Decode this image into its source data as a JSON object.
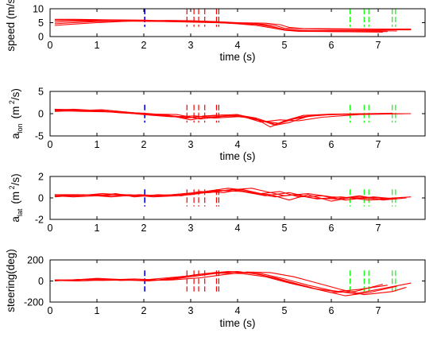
{
  "colors": {
    "traces": "#ff0000",
    "blue_marker": "#0000ff",
    "red_marker": "#ff0000",
    "green_marker": "#00ff00",
    "axes": "#000000"
  },
  "chart_data": [
    {
      "type": "line",
      "id": "speed",
      "ylabel": "speed (m/s)",
      "xlabel": "time (s)",
      "xlim": [
        0,
        8
      ],
      "ylim": [
        0,
        10
      ],
      "xticks": [
        0,
        1,
        2,
        3,
        4,
        5,
        6,
        7
      ],
      "yticks": [
        0,
        5,
        10
      ],
      "markers": {
        "blue": [
          2.02
        ],
        "red": [
          2.92,
          3.07,
          3.17,
          3.3,
          3.55,
          3.6
        ],
        "green": [
          6.4,
          6.7,
          6.8,
          7.3,
          7.37
        ],
        "y_range": [
          3.5,
          10
        ]
      },
      "series": [
        {
          "x": [
            0.1,
            0.5,
            1,
            1.5,
            2,
            2.5,
            3,
            3.5,
            4,
            4.5,
            4.8,
            5,
            5.3,
            6,
            7,
            7.4
          ],
          "y": [
            5.8,
            5.9,
            5.8,
            5.6,
            5.6,
            5.4,
            5.3,
            5,
            4.7,
            4.3,
            3.4,
            2.5,
            2.2,
            2.1,
            2.1,
            2.0
          ]
        },
        {
          "x": [
            0.1,
            0.5,
            1,
            1.5,
            2,
            2.5,
            3,
            3.5,
            4,
            4.5,
            4.8,
            5,
            6,
            7,
            7.7
          ],
          "y": [
            5.2,
            5.5,
            5.6,
            5.6,
            5.5,
            5.4,
            5.2,
            5,
            4.9,
            4.5,
            4,
            3.0,
            2.6,
            2.5,
            2.4
          ]
        },
        {
          "x": [
            0.1,
            0.5,
            1,
            1.5,
            2,
            2.5,
            3,
            3.5,
            4,
            4.4,
            4.7,
            5,
            5.5,
            6,
            7.1
          ],
          "y": [
            4.6,
            5.0,
            5.4,
            5.7,
            5.7,
            5.6,
            5.4,
            5.2,
            4.9,
            4.4,
            3.6,
            2.6,
            2.1,
            1.8,
            1.6
          ]
        },
        {
          "x": [
            0.1,
            0.5,
            1,
            1.5,
            2,
            2.5,
            3,
            3.5,
            4,
            4.6,
            4.9,
            5.1,
            5.4,
            6,
            7,
            7.7
          ],
          "y": [
            4.0,
            4.5,
            5.0,
            5.4,
            5.7,
            5.8,
            5.7,
            5.4,
            5.0,
            4.8,
            4.3,
            3.3,
            2.9,
            2.8,
            2.7,
            2.7
          ]
        },
        {
          "x": [
            0.1,
            0.5,
            1,
            1.5,
            2,
            2.5,
            3,
            3.5,
            4,
            4.4,
            4.7,
            5,
            5.3,
            6,
            7.2
          ],
          "y": [
            6.2,
            6.2,
            6.1,
            6.0,
            5.9,
            5.6,
            5.4,
            5.1,
            4.6,
            4.0,
            3.2,
            2.3,
            1.9,
            1.8,
            1.8
          ]
        }
      ]
    },
    {
      "type": "line",
      "id": "a_lon",
      "ylabel_main": "a",
      "ylabel_sub": "lon",
      "ylabel_unit": "(m",
      "ylabel_sup": " 2",
      "ylabel_end": "/s)",
      "xlabel": "time (s)",
      "xlim": [
        0,
        8
      ],
      "ylim": [
        -5,
        5
      ],
      "xticks": [
        0,
        1,
        2,
        3,
        4,
        5,
        6,
        7
      ],
      "yticks": [
        -5,
        0,
        5
      ],
      "markers": {
        "blue": [
          2.02
        ],
        "red": [
          2.92,
          3.07,
          3.17,
          3.3,
          3.55,
          3.6
        ],
        "green": [
          6.4,
          6.7,
          6.8,
          7.3,
          7.37
        ],
        "y_range": [
          -2,
          2
        ]
      },
      "series": [
        {
          "x": [
            0.1,
            0.5,
            1,
            1.5,
            2,
            2.5,
            3,
            3.5,
            4,
            4.4,
            4.7,
            5,
            5.4,
            6,
            7,
            7.7
          ],
          "y": [
            1.0,
            0.9,
            0.6,
            0.2,
            -0.1,
            -0.4,
            -0.9,
            -0.4,
            -0.2,
            -1.2,
            -3.0,
            -1.6,
            -0.4,
            -0.1,
            0,
            0
          ]
        },
        {
          "x": [
            0.1,
            0.5,
            1,
            1.5,
            2,
            2.5,
            3,
            3.3,
            3.6,
            4,
            4.5,
            4.8,
            5.1,
            5.5,
            6,
            7,
            7.5
          ],
          "y": [
            0.8,
            1.0,
            0.7,
            0.3,
            0.1,
            -0.3,
            -1.4,
            -0.8,
            -0.6,
            -0.5,
            -1.5,
            -2.6,
            -2.0,
            -0.6,
            -0.2,
            0,
            0
          ]
        },
        {
          "x": [
            0.1,
            0.6,
            1.1,
            1.6,
            2,
            2.5,
            2.9,
            3.3,
            3.7,
            4.2,
            4.6,
            4.9,
            5.2,
            5.7,
            6.5,
            7.2
          ],
          "y": [
            0.5,
            0.7,
            0.9,
            0.4,
            0,
            -0.5,
            -1.0,
            -0.5,
            -0.3,
            -0.9,
            -1.8,
            -2.2,
            -1.2,
            -0.3,
            -0.1,
            0
          ]
        },
        {
          "x": [
            0.1,
            0.6,
            1.2,
            1.7,
            2.1,
            2.6,
            3.1,
            3.5,
            4.1,
            4.5,
            4.9,
            5.3,
            5.8,
            6.6,
            7.6
          ],
          "y": [
            0.9,
            0.6,
            0.8,
            0.1,
            -0.3,
            -0.7,
            -0.5,
            -1.0,
            -0.6,
            -1.9,
            -1.4,
            -1.6,
            -0.8,
            -0.2,
            0
          ]
        },
        {
          "x": [
            0.1,
            0.7,
            1.3,
            1.8,
            2.2,
            2.7,
            3.2,
            3.6,
            4,
            4.4,
            4.8,
            5.2,
            5.6,
            6.2,
            7.3
          ],
          "y": [
            0.7,
            0.5,
            0.4,
            0.2,
            -0.1,
            -0.2,
            -1.2,
            -0.7,
            -0.3,
            -1.0,
            -2.4,
            -1.0,
            -0.4,
            -0.1,
            0.1
          ]
        }
      ]
    },
    {
      "type": "line",
      "id": "a_lat",
      "ylabel_main": "a",
      "ylabel_sub": "lat",
      "ylabel_unit": "(m",
      "ylabel_sup": " 2",
      "ylabel_end": "/s)",
      "xlabel": "",
      "xlim": [
        0,
        8
      ],
      "ylim": [
        -2,
        2
      ],
      "xticks": [
        0,
        1,
        2,
        3,
        4,
        5,
        6,
        7
      ],
      "yticks": [
        -2,
        0,
        2
      ],
      "markers": {
        "blue": [
          2.02
        ],
        "red": [
          2.92,
          3.07,
          3.17,
          3.3,
          3.55,
          3.6
        ],
        "green": [
          6.4,
          6.7,
          6.8,
          7.3,
          7.37
        ],
        "y_range": [
          -0.8,
          0.8
        ]
      },
      "series": [
        {
          "x": [
            0.1,
            0.5,
            1,
            1.5,
            2,
            2.5,
            3,
            3.5,
            4,
            4.3,
            4.6,
            5,
            5.5,
            6,
            6.5,
            7,
            7.7
          ],
          "y": [
            0.2,
            0.2,
            0.3,
            0.2,
            0.2,
            0.2,
            0.3,
            0.6,
            0.8,
            0.9,
            0.6,
            0.2,
            0.4,
            0.1,
            0.0,
            -0.1,
            0.1
          ]
        },
        {
          "x": [
            0.1,
            0.6,
            1.1,
            1.6,
            2.1,
            2.6,
            3.1,
            3.6,
            4.1,
            4.6,
            5.1,
            5.6,
            6.1,
            6.6,
            7.1,
            7.6
          ],
          "y": [
            0.3,
            0.2,
            0.4,
            0.3,
            0.2,
            0.3,
            0.5,
            0.7,
            0.6,
            0.2,
            0.5,
            0.0,
            -0.1,
            0.2,
            -0.2,
            0
          ]
        },
        {
          "x": [
            0.1,
            0.7,
            1.3,
            1.9,
            2.4,
            2.9,
            3.4,
            3.9,
            4.3,
            4.7,
            5.1,
            5.5,
            6,
            6.5,
            7.1
          ],
          "y": [
            0.1,
            0.3,
            0.1,
            0.3,
            0.2,
            0.4,
            0.5,
            0.8,
            0.5,
            0.3,
            -0.2,
            0.3,
            -0.3,
            0.1,
            0.0
          ]
        },
        {
          "x": [
            0.1,
            0.5,
            1,
            1.4,
            1.8,
            2.3,
            2.8,
            3.3,
            3.8,
            4.2,
            4.5,
            4.9,
            5.3,
            5.8,
            6.3,
            6.9,
            7.4
          ],
          "y": [
            0.2,
            0.1,
            0.2,
            0.4,
            0.1,
            0.3,
            0.2,
            0.6,
            0.9,
            0.7,
            0.4,
            0.6,
            0.1,
            0.2,
            -0.2,
            0.1,
            -0.1
          ]
        },
        {
          "x": [
            0.1,
            0.6,
            1.2,
            1.7,
            2.2,
            2.7,
            3.2,
            3.7,
            4.1,
            4.4,
            4.8,
            5.2,
            5.7,
            6.2,
            6.8,
            7.3
          ],
          "y": [
            0.3,
            0.3,
            0.2,
            0.3,
            0.1,
            0.2,
            0.6,
            0.5,
            0.8,
            0.4,
            0.1,
            0.3,
            -0.1,
            0.1,
            -0.2,
            -0.1
          ]
        }
      ]
    },
    {
      "type": "line",
      "id": "steering",
      "ylabel": "steering(deg)",
      "xlabel": "time (s)",
      "xlim": [
        0,
        8
      ],
      "ylim": [
        -200,
        200
      ],
      "xticks": [
        0,
        1,
        2,
        3,
        4,
        5,
        6,
        7
      ],
      "yticks": [
        -200,
        0,
        200
      ],
      "markers": {
        "blue": [
          2.02
        ],
        "red": [
          2.92,
          3.07,
          3.17,
          3.3,
          3.55,
          3.6
        ],
        "green": [
          6.4,
          6.7,
          6.8,
          7.3,
          7.37
        ],
        "y_range": [
          -100,
          100
        ]
      },
      "series": [
        {
          "x": [
            0.1,
            0.5,
            1,
            1.5,
            2,
            2.5,
            3,
            3.5,
            3.9,
            4.5,
            5,
            5.5,
            6,
            6.5,
            7,
            7.7
          ],
          "y": [
            5,
            10,
            15,
            10,
            5,
            10,
            40,
            70,
            85,
            70,
            20,
            -40,
            -90,
            -120,
            -80,
            -20
          ]
        },
        {
          "x": [
            0.1,
            0.5,
            1,
            1.5,
            2,
            2.5,
            3,
            3.5,
            4,
            4.5,
            5,
            5.5,
            6,
            6.5,
            7.1
          ],
          "y": [
            10,
            5,
            20,
            5,
            10,
            30,
            50,
            80,
            90,
            60,
            0,
            -60,
            -110,
            -100,
            -30
          ]
        },
        {
          "x": [
            0.1,
            0.6,
            1.1,
            1.6,
            2.1,
            2.6,
            3.1,
            3.6,
            4.1,
            4.6,
            5.1,
            5.6,
            6.1,
            6.6,
            7.2
          ],
          "y": [
            0,
            15,
            5,
            10,
            0,
            20,
            60,
            75,
            70,
            40,
            -20,
            -70,
            -100,
            -80,
            -40
          ]
        },
        {
          "x": [
            0.1,
            0.5,
            1,
            1.5,
            2,
            2.6,
            3.2,
            3.7,
            4.2,
            4.7,
            5.2,
            5.7,
            6.2,
            6.7,
            7.3,
            7.6
          ],
          "y": [
            10,
            10,
            25,
            15,
            5,
            10,
            30,
            60,
            85,
            80,
            40,
            -20,
            -80,
            -130,
            -100,
            -60
          ]
        },
        {
          "x": [
            0.1,
            0.6,
            1.2,
            1.8,
            2.3,
            2.8,
            3.3,
            3.8,
            4.3,
            4.8,
            5.3,
            5.8,
            6.3,
            6.8,
            7.4
          ],
          "y": [
            5,
            0,
            10,
            20,
            10,
            40,
            70,
            90,
            75,
            30,
            -30,
            -90,
            -140,
            -110,
            -50
          ]
        }
      ]
    }
  ]
}
